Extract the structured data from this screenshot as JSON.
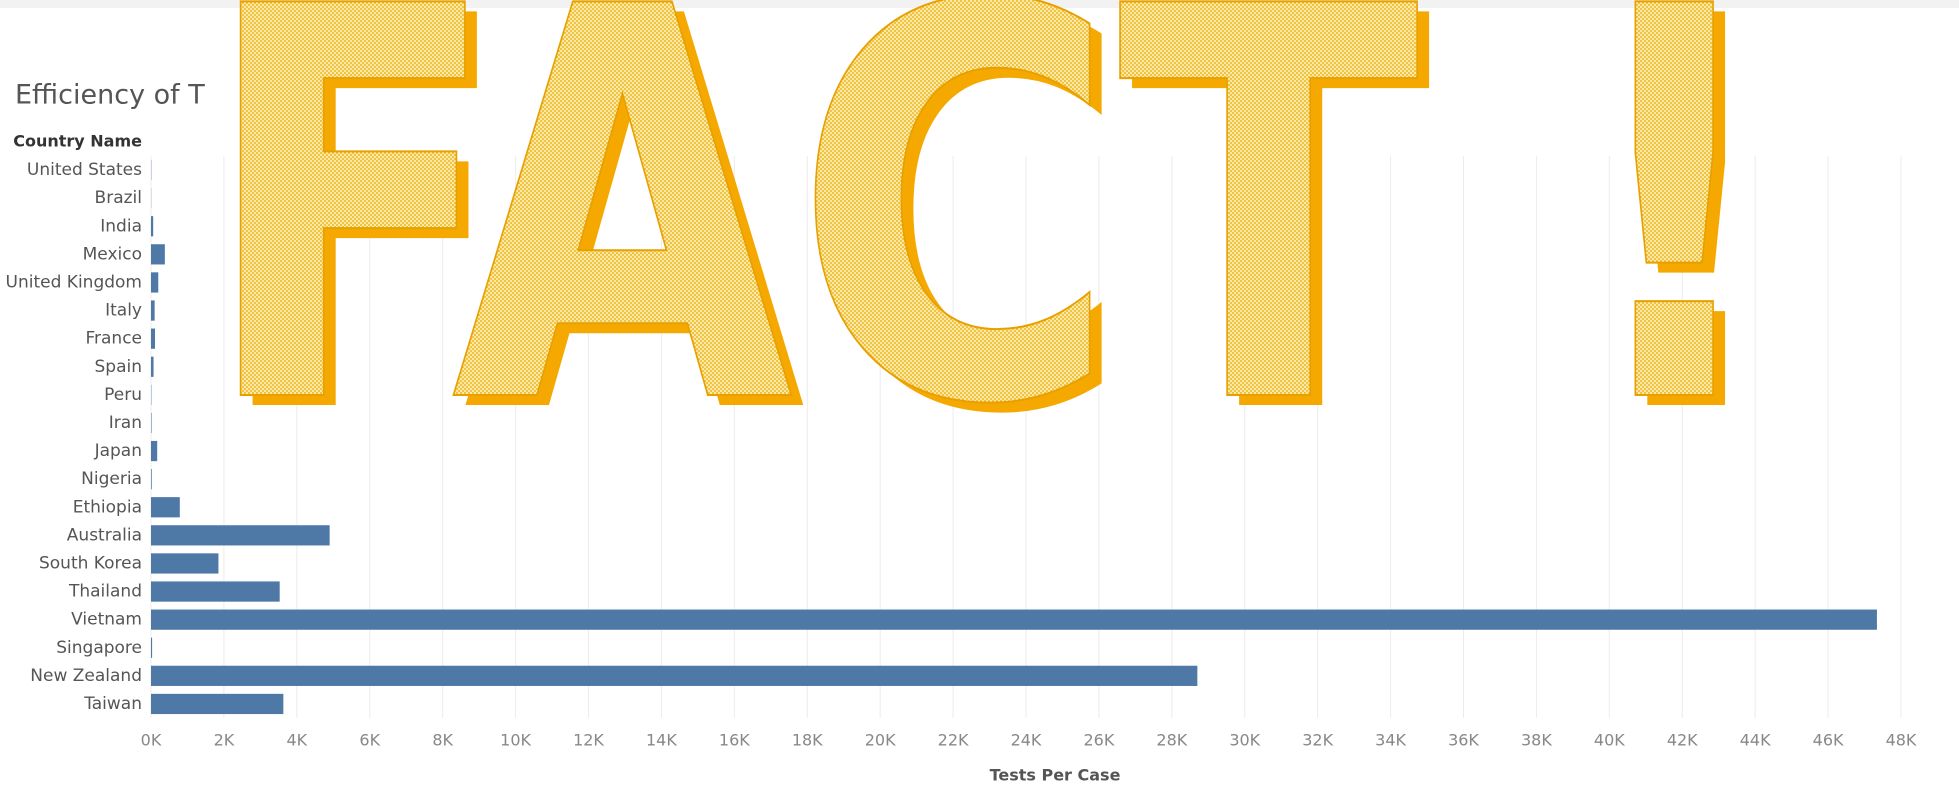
{
  "chart_data": {
    "type": "barh",
    "title": "Efficiency of T",
    "overlay_text": "FACT !",
    "category_header": "Country Name",
    "x_label": "Tests Per Case",
    "color": "#4e79a7",
    "grid": true,
    "categories": [
      "United States",
      "Brazil",
      "India",
      "Mexico",
      "United Kingdom",
      "Italy",
      "France",
      "Spain",
      "Peru",
      "Iran",
      "Japan",
      "Nigeria",
      "Ethiopia",
      "Australia",
      "South Korea",
      "Thailand",
      "Vietnam",
      "Singapore",
      "New Zealand",
      "Taiwan"
    ],
    "values": [
      8,
      5,
      60,
      380,
      200,
      100,
      110,
      70,
      10,
      15,
      170,
      20,
      790,
      4900,
      1850,
      3530,
      47340,
      30,
      28700,
      3630
    ],
    "xlim": [
      0,
      48000
    ],
    "xticks": [
      {
        "value": 0,
        "label": "0K"
      },
      {
        "value": 2000,
        "label": "2K"
      },
      {
        "value": 4000,
        "label": "4K"
      },
      {
        "value": 6000,
        "label": "6K"
      },
      {
        "value": 8000,
        "label": "8K"
      },
      {
        "value": 10000,
        "label": "10K"
      },
      {
        "value": 12000,
        "label": "12K"
      },
      {
        "value": 14000,
        "label": "14K"
      },
      {
        "value": 16000,
        "label": "16K"
      },
      {
        "value": 18000,
        "label": "18K"
      },
      {
        "value": 20000,
        "label": "20K"
      },
      {
        "value": 22000,
        "label": "22K"
      },
      {
        "value": 24000,
        "label": "24K"
      },
      {
        "value": 26000,
        "label": "26K"
      },
      {
        "value": 28000,
        "label": "28K"
      },
      {
        "value": 30000,
        "label": "30K"
      },
      {
        "value": 32000,
        "label": "32K"
      },
      {
        "value": 34000,
        "label": "34K"
      },
      {
        "value": 36000,
        "label": "36K"
      },
      {
        "value": 38000,
        "label": "38K"
      },
      {
        "value": 40000,
        "label": "40K"
      },
      {
        "value": 42000,
        "label": "42K"
      },
      {
        "value": 44000,
        "label": "44K"
      },
      {
        "value": 46000,
        "label": "46K"
      },
      {
        "value": 48000,
        "label": "48K"
      }
    ]
  }
}
